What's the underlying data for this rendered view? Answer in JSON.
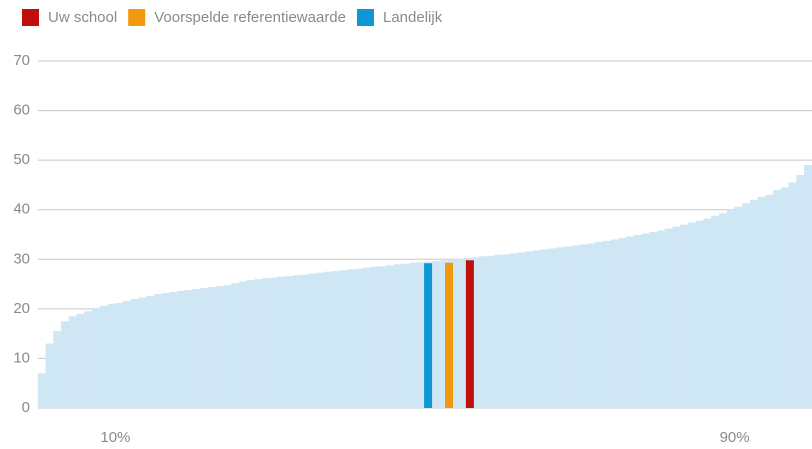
{
  "chart_data": {
    "type": "bar",
    "series": [
      {
        "name": "Uw school",
        "color": "#c0100c",
        "x": [
          55.8
        ],
        "values": [
          29.8
        ]
      },
      {
        "name": "Voorspelde referentiewaarde",
        "color": "#f29a0e",
        "x": [
          53.1
        ],
        "values": [
          29.3
        ]
      },
      {
        "name": "Landelijk",
        "color": "#0d98d4",
        "x": [
          50.4
        ],
        "values": [
          29.2
        ]
      }
    ],
    "distribution": {
      "color": "#cfe6f5",
      "x": [
        0.5,
        1.5,
        2.5,
        3.5,
        4.5,
        5.5,
        6.5,
        7.5,
        8.5,
        9.5,
        10.5,
        11.5,
        12.5,
        13.5,
        14.5,
        15.5,
        16.5,
        17.5,
        18.5,
        19.5,
        20.5,
        21.5,
        22.5,
        23.5,
        24.5,
        25.5,
        26.5,
        27.5,
        28.5,
        29.5,
        30.5,
        31.5,
        32.5,
        33.5,
        34.5,
        35.5,
        36.5,
        37.5,
        38.5,
        39.5,
        40.5,
        41.5,
        42.5,
        43.5,
        44.5,
        45.5,
        46.5,
        47.5,
        48.5,
        49.5,
        50.5,
        51.5,
        52.5,
        53.5,
        54.5,
        55.5,
        56.5,
        57.5,
        58.5,
        59.5,
        60.5,
        61.5,
        62.5,
        63.5,
        64.5,
        65.5,
        66.5,
        67.5,
        68.5,
        69.5,
        70.5,
        71.5,
        72.5,
        73.5,
        74.5,
        75.5,
        76.5,
        77.5,
        78.5,
        79.5,
        80.5,
        81.5,
        82.5,
        83.5,
        84.5,
        85.5,
        86.5,
        87.5,
        88.5,
        89.5,
        90.5,
        91.5,
        92.5,
        93.5,
        94.5,
        95.5,
        96.5,
        97.5,
        98.5,
        99.5
      ],
      "values": [
        7,
        13,
        15.5,
        17.5,
        18.5,
        19,
        19.5,
        20.2,
        20.6,
        21,
        21.2,
        21.6,
        22,
        22.3,
        22.6,
        23,
        23.2,
        23.4,
        23.6,
        23.8,
        24,
        24.2,
        24.4,
        24.6,
        24.8,
        25.2,
        25.5,
        25.8,
        26,
        26.2,
        26.3,
        26.5,
        26.6,
        26.8,
        26.9,
        27.1,
        27.3,
        27.5,
        27.6,
        27.8,
        28,
        28.1,
        28.3,
        28.5,
        28.6,
        28.8,
        29,
        29.1,
        29.3,
        29.4,
        29.5,
        29.7,
        29.8,
        30,
        30.1,
        30.3,
        30.4,
        30.6,
        30.7,
        30.9,
        31,
        31.2,
        31.4,
        31.6,
        31.8,
        32,
        32.2,
        32.4,
        32.6,
        32.8,
        33,
        33.2,
        33.5,
        33.7,
        34,
        34.3,
        34.6,
        34.9,
        35.2,
        35.5,
        35.8,
        36.2,
        36.6,
        37,
        37.4,
        37.8,
        38.2,
        38.8,
        39.3,
        40,
        40.6,
        41.3,
        42,
        42.6,
        43,
        44,
        44.5,
        45.5,
        47,
        49
      ]
    },
    "xlim": [
      0,
      100
    ],
    "xticks": [
      {
        "value": 10,
        "label": "10%"
      },
      {
        "value": 90,
        "label": "90%"
      }
    ],
    "ylim": [
      0,
      70
    ],
    "yticks": [
      0,
      10,
      20,
      30,
      40,
      50,
      60,
      70
    ],
    "grid": true
  }
}
